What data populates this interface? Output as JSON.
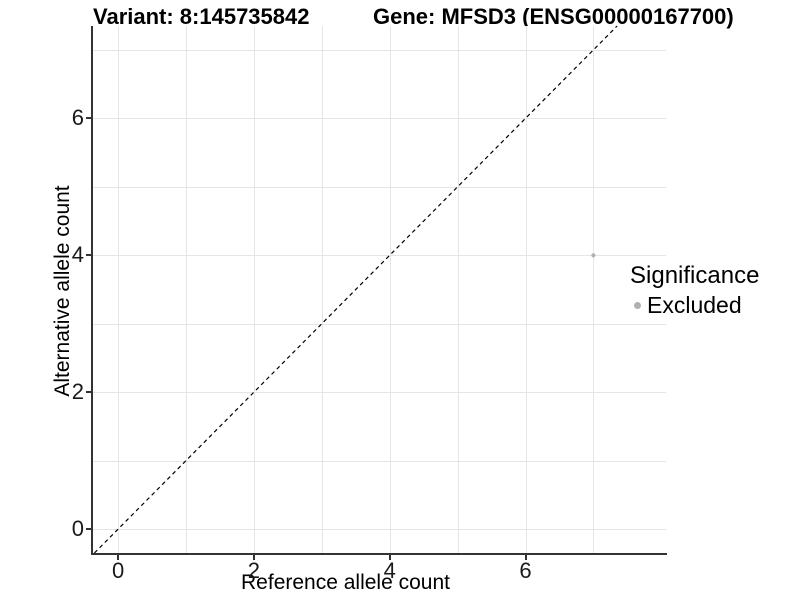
{
  "header": {
    "variant_title": "Variant: 8:145735842",
    "gene_title": "Gene: MFSD3 (ENSG00000167700)"
  },
  "axes": {
    "x": {
      "label": "Reference allele count",
      "tick_labels": [
        "0",
        "2",
        "4",
        "6"
      ],
      "tick_values": [
        0,
        2,
        4,
        6
      ]
    },
    "y": {
      "label": "Alternative allele count",
      "tick_labels": [
        "0",
        "2",
        "4",
        "6"
      ],
      "tick_values": [
        0,
        2,
        4,
        6
      ]
    }
  },
  "legend": {
    "title": "Significance",
    "items": [
      {
        "label": "Excluded",
        "color": "#b0b0b0"
      }
    ]
  },
  "chart_data": {
    "type": "scatter",
    "title": "Variant: 8:145735842 / Gene: MFSD3 (ENSG00000167700)",
    "xlabel": "Reference allele count",
    "ylabel": "Alternative allele count",
    "xlim": [
      -0.37,
      8.07
    ],
    "ylim": [
      -0.35,
      7.35
    ],
    "grid_values": [
      0,
      1,
      2,
      3,
      4,
      5,
      6,
      7
    ],
    "grid": true,
    "legend_position": "right",
    "series": [
      {
        "name": "Excluded",
        "color": "#b0b0b0",
        "points": [
          [
            7,
            4
          ]
        ]
      }
    ],
    "reference_line": {
      "type": "identity",
      "slope": 1,
      "intercept": 0,
      "style": "dashed",
      "color": "#000000"
    }
  },
  "colors": {
    "background": "#ffffff",
    "gridline": "#e5e5e5",
    "axis_line": "#333333",
    "tick_text": "#1a1a1a",
    "title_text": "#000000",
    "point": "#b0b0b0"
  }
}
